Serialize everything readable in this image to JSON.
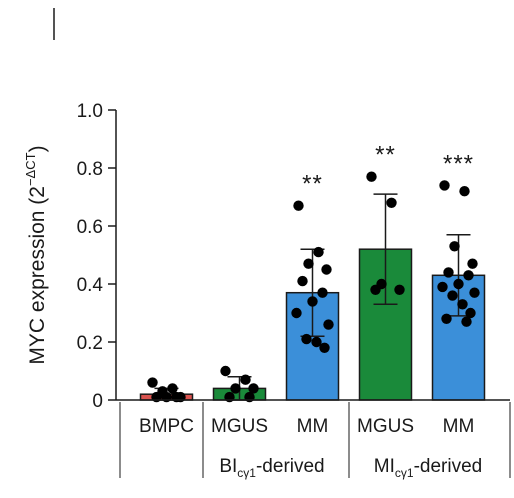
{
  "chart_data": {
    "type": "bar",
    "ylabel": {
      "main": "MYC expression (2",
      "sup": "−ΔCT",
      "close": ")"
    },
    "ylim": [
      0,
      1.0
    ],
    "yticks": [
      "0",
      "0.2",
      "0.4",
      "0.6",
      "0.8",
      "1.0"
    ],
    "categories": [
      "BMPC",
      "MGUS",
      "MM",
      "MGUS",
      "MM"
    ],
    "groups": [
      {
        "main": "BI",
        "sub": "cγ1",
        "rest": "-derived"
      },
      {
        "main": "MI",
        "sub": "cγ1",
        "rest": "-derived"
      }
    ],
    "bars": [
      {
        "category": "BMPC",
        "mean": 0.02,
        "sd": 0.02,
        "color": "#d9534f",
        "sig": "",
        "points": [
          0.06,
          0.04,
          0.03,
          0.01,
          0.01,
          0.01,
          0.01
        ]
      },
      {
        "category": "MGUS",
        "mean": 0.04,
        "sd": 0.04,
        "color": "#1a8a3a",
        "sig": "",
        "points": [
          0.1,
          0.07,
          0.04,
          0.04,
          0.01,
          0.01
        ]
      },
      {
        "category": "MM",
        "mean": 0.37,
        "sd": 0.15,
        "color": "#3b8fd9",
        "sig": "**",
        "points": [
          0.67,
          0.51,
          0.47,
          0.45,
          0.41,
          0.37,
          0.34,
          0.3,
          0.26,
          0.21,
          0.2,
          0.18
        ]
      },
      {
        "category": "MGUS",
        "mean": 0.52,
        "sd": 0.19,
        "color": "#1a8a3a",
        "sig": "**",
        "points": [
          0.77,
          0.68,
          0.4,
          0.38,
          0.38
        ]
      },
      {
        "category": "MM",
        "mean": 0.43,
        "sd": 0.14,
        "color": "#3b8fd9",
        "sig": "***",
        "points": [
          0.74,
          0.72,
          0.53,
          0.47,
          0.44,
          0.43,
          0.4,
          0.39,
          0.37,
          0.36,
          0.33,
          0.3,
          0.28,
          0.27
        ]
      }
    ]
  }
}
